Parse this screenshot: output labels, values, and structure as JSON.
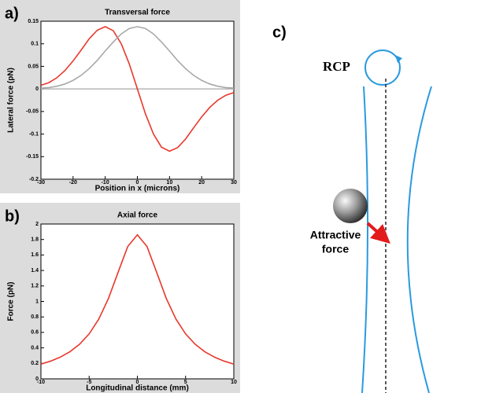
{
  "chart_data": [
    {
      "type": "line",
      "panel_label": "a)",
      "title": "Transversal force",
      "xlabel": "Position in x (microns)",
      "ylabel": "Lateral force (pN)",
      "x": [
        -30,
        -27.5,
        -25,
        -22.5,
        -20,
        -17.5,
        -15,
        -12.5,
        -10,
        -7.5,
        -5,
        -2.5,
        0,
        2.5,
        5,
        7.5,
        10,
        12.5,
        15,
        17.5,
        20,
        22.5,
        25,
        27.5,
        30
      ],
      "series": [
        {
          "color": "#e8382c",
          "values": [
            0.008,
            0.014,
            0.025,
            0.041,
            0.062,
            0.086,
            0.111,
            0.13,
            0.138,
            0.129,
            0.1,
            0.055,
            0,
            -0.055,
            -0.1,
            -0.129,
            -0.138,
            -0.13,
            -0.111,
            -0.086,
            -0.062,
            -0.041,
            -0.025,
            -0.014,
            -0.008
          ]
        },
        {
          "color": "#a8a8a8",
          "values": [
            0.002,
            0.003,
            0.006,
            0.011,
            0.019,
            0.03,
            0.045,
            0.063,
            0.084,
            0.104,
            0.122,
            0.134,
            0.138,
            0.134,
            0.122,
            0.104,
            0.084,
            0.063,
            0.045,
            0.03,
            0.019,
            0.011,
            0.006,
            0.003,
            0.002
          ]
        }
      ],
      "xlim": [
        -30,
        30
      ],
      "xticks": [
        -30,
        -20,
        -10,
        0,
        10,
        20,
        30
      ],
      "ylim": [
        -0.2,
        0.15
      ],
      "yticks": [
        -0.2,
        -0.15,
        -0.1,
        -0.05,
        0,
        0.05,
        0.1,
        0.15
      ],
      "zero_line": true
    },
    {
      "type": "line",
      "panel_label": "b)",
      "title": "Axial force",
      "xlabel": "Longitudinal distance (mm)",
      "ylabel": "Force (pN)",
      "x": [
        -10,
        -9,
        -8,
        -7,
        -6,
        -5,
        -4,
        -3,
        -2,
        -1,
        0,
        1,
        2,
        3,
        4,
        5,
        6,
        7,
        8,
        9,
        10
      ],
      "series": [
        {
          "color": "#e8382c",
          "values": [
            0.19,
            0.229,
            0.28,
            0.35,
            0.446,
            0.581,
            0.772,
            1.038,
            1.376,
            1.709,
            1.86,
            1.709,
            1.376,
            1.038,
            0.772,
            0.581,
            0.446,
            0.35,
            0.28,
            0.229,
            0.19
          ]
        }
      ],
      "xlim": [
        -10,
        10
      ],
      "xticks": [
        -10,
        -5,
        0,
        5,
        10
      ],
      "ylim": [
        0,
        2
      ],
      "yticks": [
        0,
        0.2,
        0.4,
        0.6,
        0.8,
        1,
        1.2,
        1.4,
        1.6,
        1.8,
        2
      ],
      "zero_line": false
    }
  ],
  "diagram": {
    "panel_label": "c)",
    "rcp": "RCP",
    "annotation": [
      "Attractive",
      "force"
    ]
  }
}
